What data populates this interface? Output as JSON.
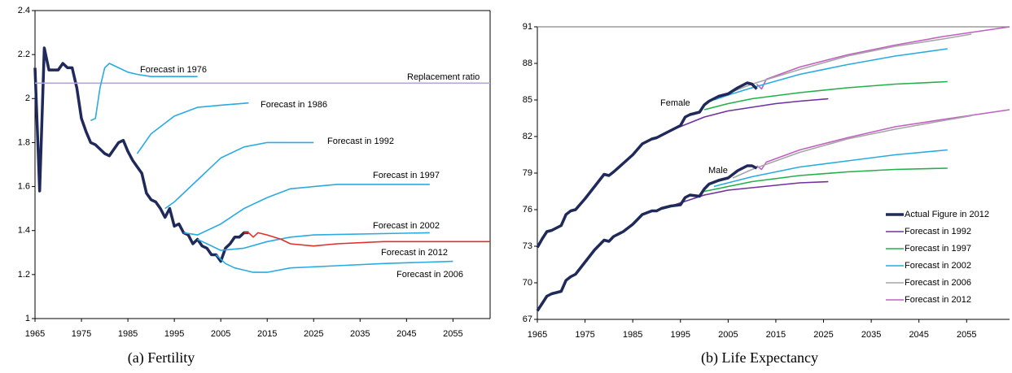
{
  "chart_data": [
    {
      "type": "line",
      "title": "(a) Fertility",
      "xlim": [
        1965,
        2063
      ],
      "ylim": [
        1,
        2.4
      ],
      "xticks": [
        1965,
        1975,
        1985,
        1995,
        2005,
        2015,
        2025,
        2035,
        2045,
        2055
      ],
      "yticks": [
        1,
        1.2,
        1.4,
        1.6,
        1.8,
        2,
        2.2,
        2.4
      ],
      "series": [
        {
          "color": "#1f2a5a",
          "x": [
            1965,
            1966,
            1967,
            1968,
            1969,
            1970,
            1971,
            1972,
            1973,
            1974,
            1975,
            1976,
            1977,
            1978,
            1979,
            1980,
            1981,
            1982,
            1983,
            1984,
            1985,
            1986,
            1987,
            1988,
            1989,
            1990,
            1991,
            1992,
            1993,
            1994,
            1995,
            1996,
            1997,
            1998,
            1999,
            2000,
            2001,
            2002,
            2003,
            2004,
            2005,
            2006,
            2007,
            2008,
            2009,
            2010,
            2011
          ],
          "values": [
            2.14,
            1.58,
            2.23,
            2.13,
            2.13,
            2.13,
            2.16,
            2.14,
            2.14,
            2.05,
            1.91,
            1.85,
            1.8,
            1.79,
            1.77,
            1.75,
            1.74,
            1.77,
            1.8,
            1.81,
            1.76,
            1.72,
            1.69,
            1.66,
            1.57,
            1.54,
            1.53,
            1.5,
            1.46,
            1.5,
            1.42,
            1.43,
            1.39,
            1.38,
            1.34,
            1.36,
            1.33,
            1.32,
            1.29,
            1.29,
            1.26,
            1.32,
            1.34,
            1.37,
            1.37,
            1.39,
            1.39
          ]
        },
        {
          "name": "Replacement ratio",
          "color": "#b4a7d6",
          "x": [
            1965,
            2063
          ],
          "values": [
            2.07,
            2.07
          ]
        },
        {
          "name": "Forecast in 1976",
          "color": "#29abe2",
          "x": [
            1977,
            1978,
            1979,
            1980,
            1981,
            1983,
            1985,
            1987,
            1990,
            2000
          ],
          "values": [
            1.9,
            1.91,
            2.05,
            2.14,
            2.16,
            2.14,
            2.12,
            2.11,
            2.1,
            2.1
          ]
        },
        {
          "name": "Forecast in 1986",
          "color": "#29abe2",
          "x": [
            1987,
            1990,
            1995,
            2000,
            2005,
            2011
          ],
          "values": [
            1.75,
            1.84,
            1.92,
            1.96,
            1.97,
            1.98
          ]
        },
        {
          "name": "Forecast in 1992",
          "color": "#29abe2",
          "x": [
            1993,
            1995,
            2000,
            2005,
            2010,
            2015,
            2020,
            2025
          ],
          "values": [
            1.5,
            1.53,
            1.63,
            1.73,
            1.78,
            1.8,
            1.8,
            1.8
          ]
        },
        {
          "name": "Forecast in 1997",
          "color": "#29abe2",
          "x": [
            1997,
            2000,
            2005,
            2010,
            2015,
            2020,
            2025,
            2030,
            2050
          ],
          "values": [
            1.39,
            1.38,
            1.43,
            1.5,
            1.55,
            1.59,
            1.6,
            1.61,
            1.61
          ]
        },
        {
          "name": "Forecast in 2002",
          "color": "#29abe2",
          "x": [
            2000,
            2005,
            2010,
            2015,
            2020,
            2025,
            2050
          ],
          "values": [
            1.36,
            1.31,
            1.32,
            1.35,
            1.37,
            1.38,
            1.39
          ]
        },
        {
          "name": "Forecast in 2012",
          "color": "#e0302a",
          "x": [
            2010,
            2011,
            2012,
            2013,
            2015,
            2018,
            2020,
            2025,
            2030,
            2040,
            2063
          ],
          "values": [
            1.39,
            1.39,
            1.37,
            1.39,
            1.38,
            1.36,
            1.34,
            1.33,
            1.34,
            1.35,
            1.35
          ]
        },
        {
          "name": "Forecast in 2006",
          "color": "#29abe2",
          "x": [
            2004,
            2006,
            2008,
            2010,
            2012,
            2015,
            2020,
            2030,
            2040,
            2055
          ],
          "values": [
            1.29,
            1.25,
            1.23,
            1.22,
            1.21,
            1.21,
            1.23,
            1.24,
            1.25,
            1.26
          ]
        }
      ]
    },
    {
      "type": "line",
      "title": "(b) Life Expectancy",
      "xlim": [
        1965,
        2064
      ],
      "ylim": [
        67,
        91
      ],
      "xticks": [
        1965,
        1975,
        1985,
        1995,
        2005,
        2015,
        2025,
        2035,
        2045,
        2055
      ],
      "yticks": [
        67,
        70,
        73,
        76,
        79,
        82,
        85,
        88,
        91
      ],
      "legend": "lower right",
      "labels": {
        "female": "Female",
        "male": "Male"
      },
      "series": [
        {
          "name": "Actual Figure in 2012",
          "color": "#1f2a5a",
          "x": [
            1965,
            1966,
            1967,
            1968,
            1970,
            1971,
            1972,
            1973,
            1975,
            1977,
            1979,
            1980,
            1981,
            1983,
            1985,
            1987,
            1989,
            1990,
            1991,
            1993,
            1995,
            1996,
            1997,
            1999,
            2000,
            2001,
            2003,
            2005,
            2007,
            2009,
            2010,
            2011
          ],
          "female": [
            72.9,
            73.6,
            74.2,
            74.3,
            74.7,
            75.6,
            75.9,
            76.0,
            76.9,
            77.9,
            78.9,
            78.8,
            79.1,
            79.8,
            80.5,
            81.4,
            81.8,
            81.9,
            82.1,
            82.5,
            82.9,
            83.6,
            83.8,
            84.0,
            84.6,
            84.9,
            85.3,
            85.5,
            86.0,
            86.4,
            86.3,
            85.9
          ],
          "male": [
            67.7,
            68.3,
            68.9,
            69.1,
            69.3,
            70.2,
            70.5,
            70.7,
            71.7,
            72.7,
            73.5,
            73.4,
            73.8,
            74.2,
            74.8,
            75.6,
            75.9,
            75.9,
            76.1,
            76.3,
            76.4,
            77.0,
            77.2,
            77.1,
            77.7,
            78.1,
            78.4,
            78.6,
            79.2,
            79.6,
            79.6,
            79.4
          ]
        },
        {
          "name": "Forecast in 1992",
          "color": "#7030a0",
          "x": [
            1993,
            2000,
            2005,
            2010,
            2015,
            2020,
            2026
          ],
          "female": [
            82.5,
            83.6,
            84.1,
            84.4,
            84.7,
            84.9,
            85.1
          ],
          "male": [
            76.3,
            77.2,
            77.6,
            77.8,
            78.0,
            78.2,
            78.3
          ]
        },
        {
          "name": "Forecast in 1997",
          "color": "#22b04b",
          "x": [
            2000,
            2005,
            2010,
            2020,
            2030,
            2040,
            2051
          ],
          "female": [
            84.2,
            84.7,
            85.1,
            85.6,
            86.0,
            86.3,
            86.5
          ],
          "male": [
            77.5,
            77.9,
            78.3,
            78.8,
            79.1,
            79.3,
            79.4
          ]
        },
        {
          "name": "Forecast in 2002",
          "color": "#29abe2",
          "x": [
            2002,
            2005,
            2010,
            2020,
            2030,
            2040,
            2051
          ],
          "female": [
            85.0,
            85.4,
            86.0,
            87.1,
            87.9,
            88.6,
            89.2
          ],
          "male": [
            77.9,
            78.2,
            78.7,
            79.5,
            80.0,
            80.5,
            80.9
          ]
        },
        {
          "name": "Forecast in 2006",
          "color": "#a6a6a6",
          "x": [
            2006,
            2010,
            2020,
            2030,
            2040,
            2050,
            2056
          ],
          "female": [
            85.7,
            86.3,
            87.5,
            88.6,
            89.4,
            90.0,
            90.4
          ],
          "male": [
            78.6,
            79.3,
            80.7,
            81.8,
            82.6,
            83.3,
            83.7
          ]
        },
        {
          "name": "Forecast in 2012",
          "color": "#c060c0",
          "x": [
            2011,
            2012,
            2013,
            2020,
            2030,
            2040,
            2050,
            2064
          ],
          "female": [
            86.3,
            85.9,
            86.7,
            87.7,
            88.7,
            89.5,
            90.2,
            91.0
          ],
          "male": [
            79.6,
            79.3,
            79.9,
            80.9,
            81.9,
            82.8,
            83.4,
            84.2
          ]
        }
      ]
    }
  ]
}
